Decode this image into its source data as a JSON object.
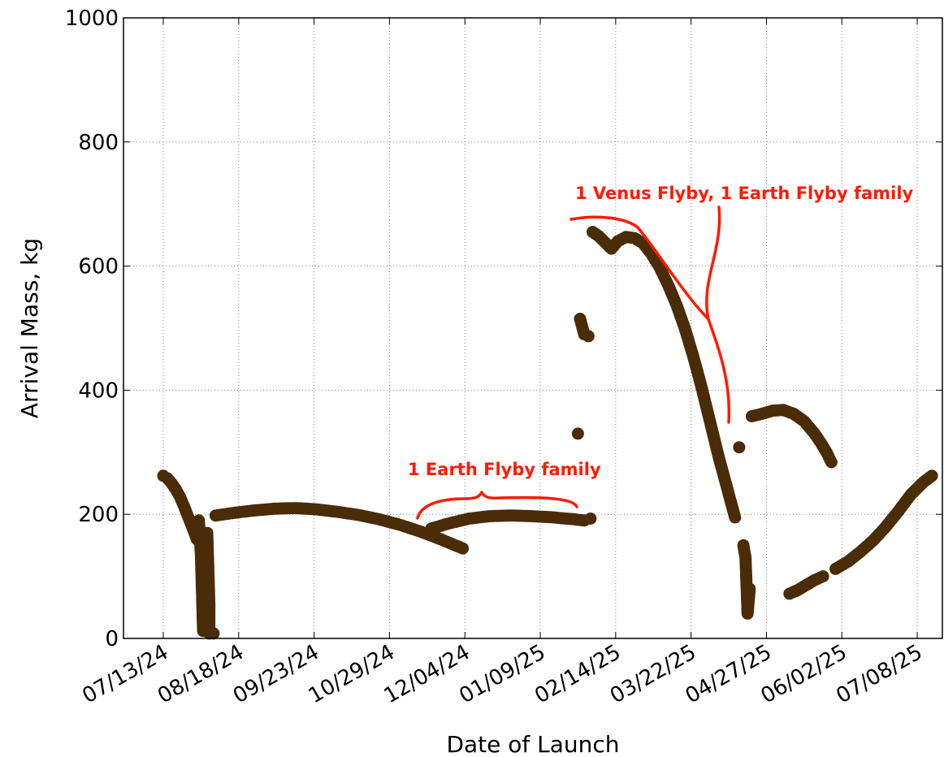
{
  "chart_data": {
    "type": "scatter",
    "xlabel": "Date of Launch",
    "ylabel": "Arrival Mass, kg",
    "ylim": [
      0,
      1000
    ],
    "yticks": [
      "0",
      "200",
      "400",
      "600",
      "800",
      "1000"
    ],
    "xlim": [
      "2024-06-24",
      "2025-07-20"
    ],
    "xticks": [
      {
        "date": "2024-07-13",
        "label": "07/13/24"
      },
      {
        "date": "2024-08-18",
        "label": "08/18/24"
      },
      {
        "date": "2024-09-23",
        "label": "09/23/24"
      },
      {
        "date": "2024-10-29",
        "label": "10/29/24"
      },
      {
        "date": "2024-12-04",
        "label": "12/04/24"
      },
      {
        "date": "2025-01-09",
        "label": "01/09/25"
      },
      {
        "date": "2025-02-14",
        "label": "02/14/25"
      },
      {
        "date": "2025-03-22",
        "label": "03/22/25"
      },
      {
        "date": "2025-04-27",
        "label": "04/27/25"
      },
      {
        "date": "2025-06-02",
        "label": "06/02/25"
      },
      {
        "date": "2025-07-08",
        "label": "07/08/25"
      }
    ],
    "grid": true,
    "marker_color": "#4a2c08",
    "annotation_color": "#ff1a00",
    "annotations": [
      {
        "text": "1 Earth Flyby family"
      },
      {
        "text": "1 Venus Flyby, 1 Earth Flyby family"
      }
    ],
    "segments": [
      {
        "points": [
          [
            "2024-07-13",
            262
          ],
          [
            "2024-07-15",
            258
          ],
          [
            "2024-07-17",
            250
          ],
          [
            "2024-07-19",
            240
          ],
          [
            "2024-07-21",
            228
          ],
          [
            "2024-07-23",
            212
          ],
          [
            "2024-07-25",
            195
          ],
          [
            "2024-07-27",
            178
          ],
          [
            "2024-07-29",
            160
          ]
        ]
      },
      {
        "points": [
          [
            "2024-07-30",
            190
          ],
          [
            "2024-07-31",
            133
          ],
          [
            "2024-08-01",
            12
          ],
          [
            "2024-08-03",
            170
          ],
          [
            "2024-08-04",
            55
          ],
          [
            "2024-08-04",
            8
          ],
          [
            "2024-08-06",
            8
          ]
        ]
      },
      {
        "points": [
          [
            "2024-08-07",
            198
          ],
          [
            "2024-08-15",
            202
          ],
          [
            "2024-08-25",
            206
          ],
          [
            "2024-09-04",
            209
          ],
          [
            "2024-09-14",
            210
          ],
          [
            "2024-09-24",
            208
          ],
          [
            "2024-10-04",
            204
          ],
          [
            "2024-10-14",
            199
          ],
          [
            "2024-10-24",
            192
          ],
          [
            "2024-11-03",
            183
          ],
          [
            "2024-11-13",
            172
          ],
          [
            "2024-11-23",
            159
          ],
          [
            "2024-12-03",
            145
          ]
        ]
      },
      {
        "points": [
          [
            "2024-11-18",
            177
          ],
          [
            "2024-11-26",
            185
          ],
          [
            "2024-12-06",
            193
          ],
          [
            "2024-12-16",
            197
          ],
          [
            "2024-12-26",
            198
          ],
          [
            "2025-01-05",
            197
          ],
          [
            "2025-01-15",
            195
          ],
          [
            "2025-01-25",
            192
          ],
          [
            "2025-01-30",
            190
          ]
        ]
      },
      {
        "points": [
          [
            "2025-01-27",
            330
          ],
          [
            "2025-01-28",
            515
          ],
          [
            "2025-01-30",
            490
          ],
          [
            "2025-02-01",
            487
          ],
          [
            "2025-02-02",
            193
          ]
        ]
      },
      {
        "points": [
          [
            "2025-02-03",
            655
          ],
          [
            "2025-02-06",
            648
          ],
          [
            "2025-02-09",
            638
          ],
          [
            "2025-02-12",
            628
          ],
          [
            "2025-02-15",
            640
          ],
          [
            "2025-02-19",
            647
          ],
          [
            "2025-02-23",
            645
          ],
          [
            "2025-02-27",
            637
          ],
          [
            "2025-03-03",
            620
          ],
          [
            "2025-03-07",
            598
          ],
          [
            "2025-03-11",
            570
          ],
          [
            "2025-03-15",
            538
          ],
          [
            "2025-03-19",
            500
          ],
          [
            "2025-03-23",
            455
          ],
          [
            "2025-03-27",
            405
          ],
          [
            "2025-03-31",
            350
          ],
          [
            "2025-04-04",
            295
          ],
          [
            "2025-04-08",
            245
          ],
          [
            "2025-04-12",
            195
          ]
        ]
      },
      {
        "points": [
          [
            "2025-04-16",
            150
          ],
          [
            "2025-04-17",
            130
          ],
          [
            "2025-04-18",
            40
          ],
          [
            "2025-04-19",
            80
          ],
          [
            "2025-04-14",
            308
          ]
        ]
      },
      {
        "points": [
          [
            "2025-04-20",
            358
          ],
          [
            "2025-04-25",
            362
          ],
          [
            "2025-04-30",
            367
          ],
          [
            "2025-05-05",
            368
          ],
          [
            "2025-05-10",
            362
          ],
          [
            "2025-05-15",
            350
          ],
          [
            "2025-05-20",
            330
          ],
          [
            "2025-05-23",
            315
          ],
          [
            "2025-05-26",
            298
          ],
          [
            "2025-05-28",
            284
          ]
        ]
      },
      {
        "points": [
          [
            "2025-05-08",
            72
          ],
          [
            "2025-05-12",
            78
          ],
          [
            "2025-05-16",
            86
          ],
          [
            "2025-05-20",
            94
          ],
          [
            "2025-05-24",
            100
          ]
        ]
      },
      {
        "points": [
          [
            "2025-05-30",
            112
          ],
          [
            "2025-06-05",
            124
          ],
          [
            "2025-06-11",
            140
          ],
          [
            "2025-06-17",
            158
          ],
          [
            "2025-06-23",
            180
          ],
          [
            "2025-06-29",
            205
          ],
          [
            "2025-07-05",
            232
          ],
          [
            "2025-07-11",
            252
          ],
          [
            "2025-07-15",
            262
          ]
        ]
      }
    ]
  }
}
